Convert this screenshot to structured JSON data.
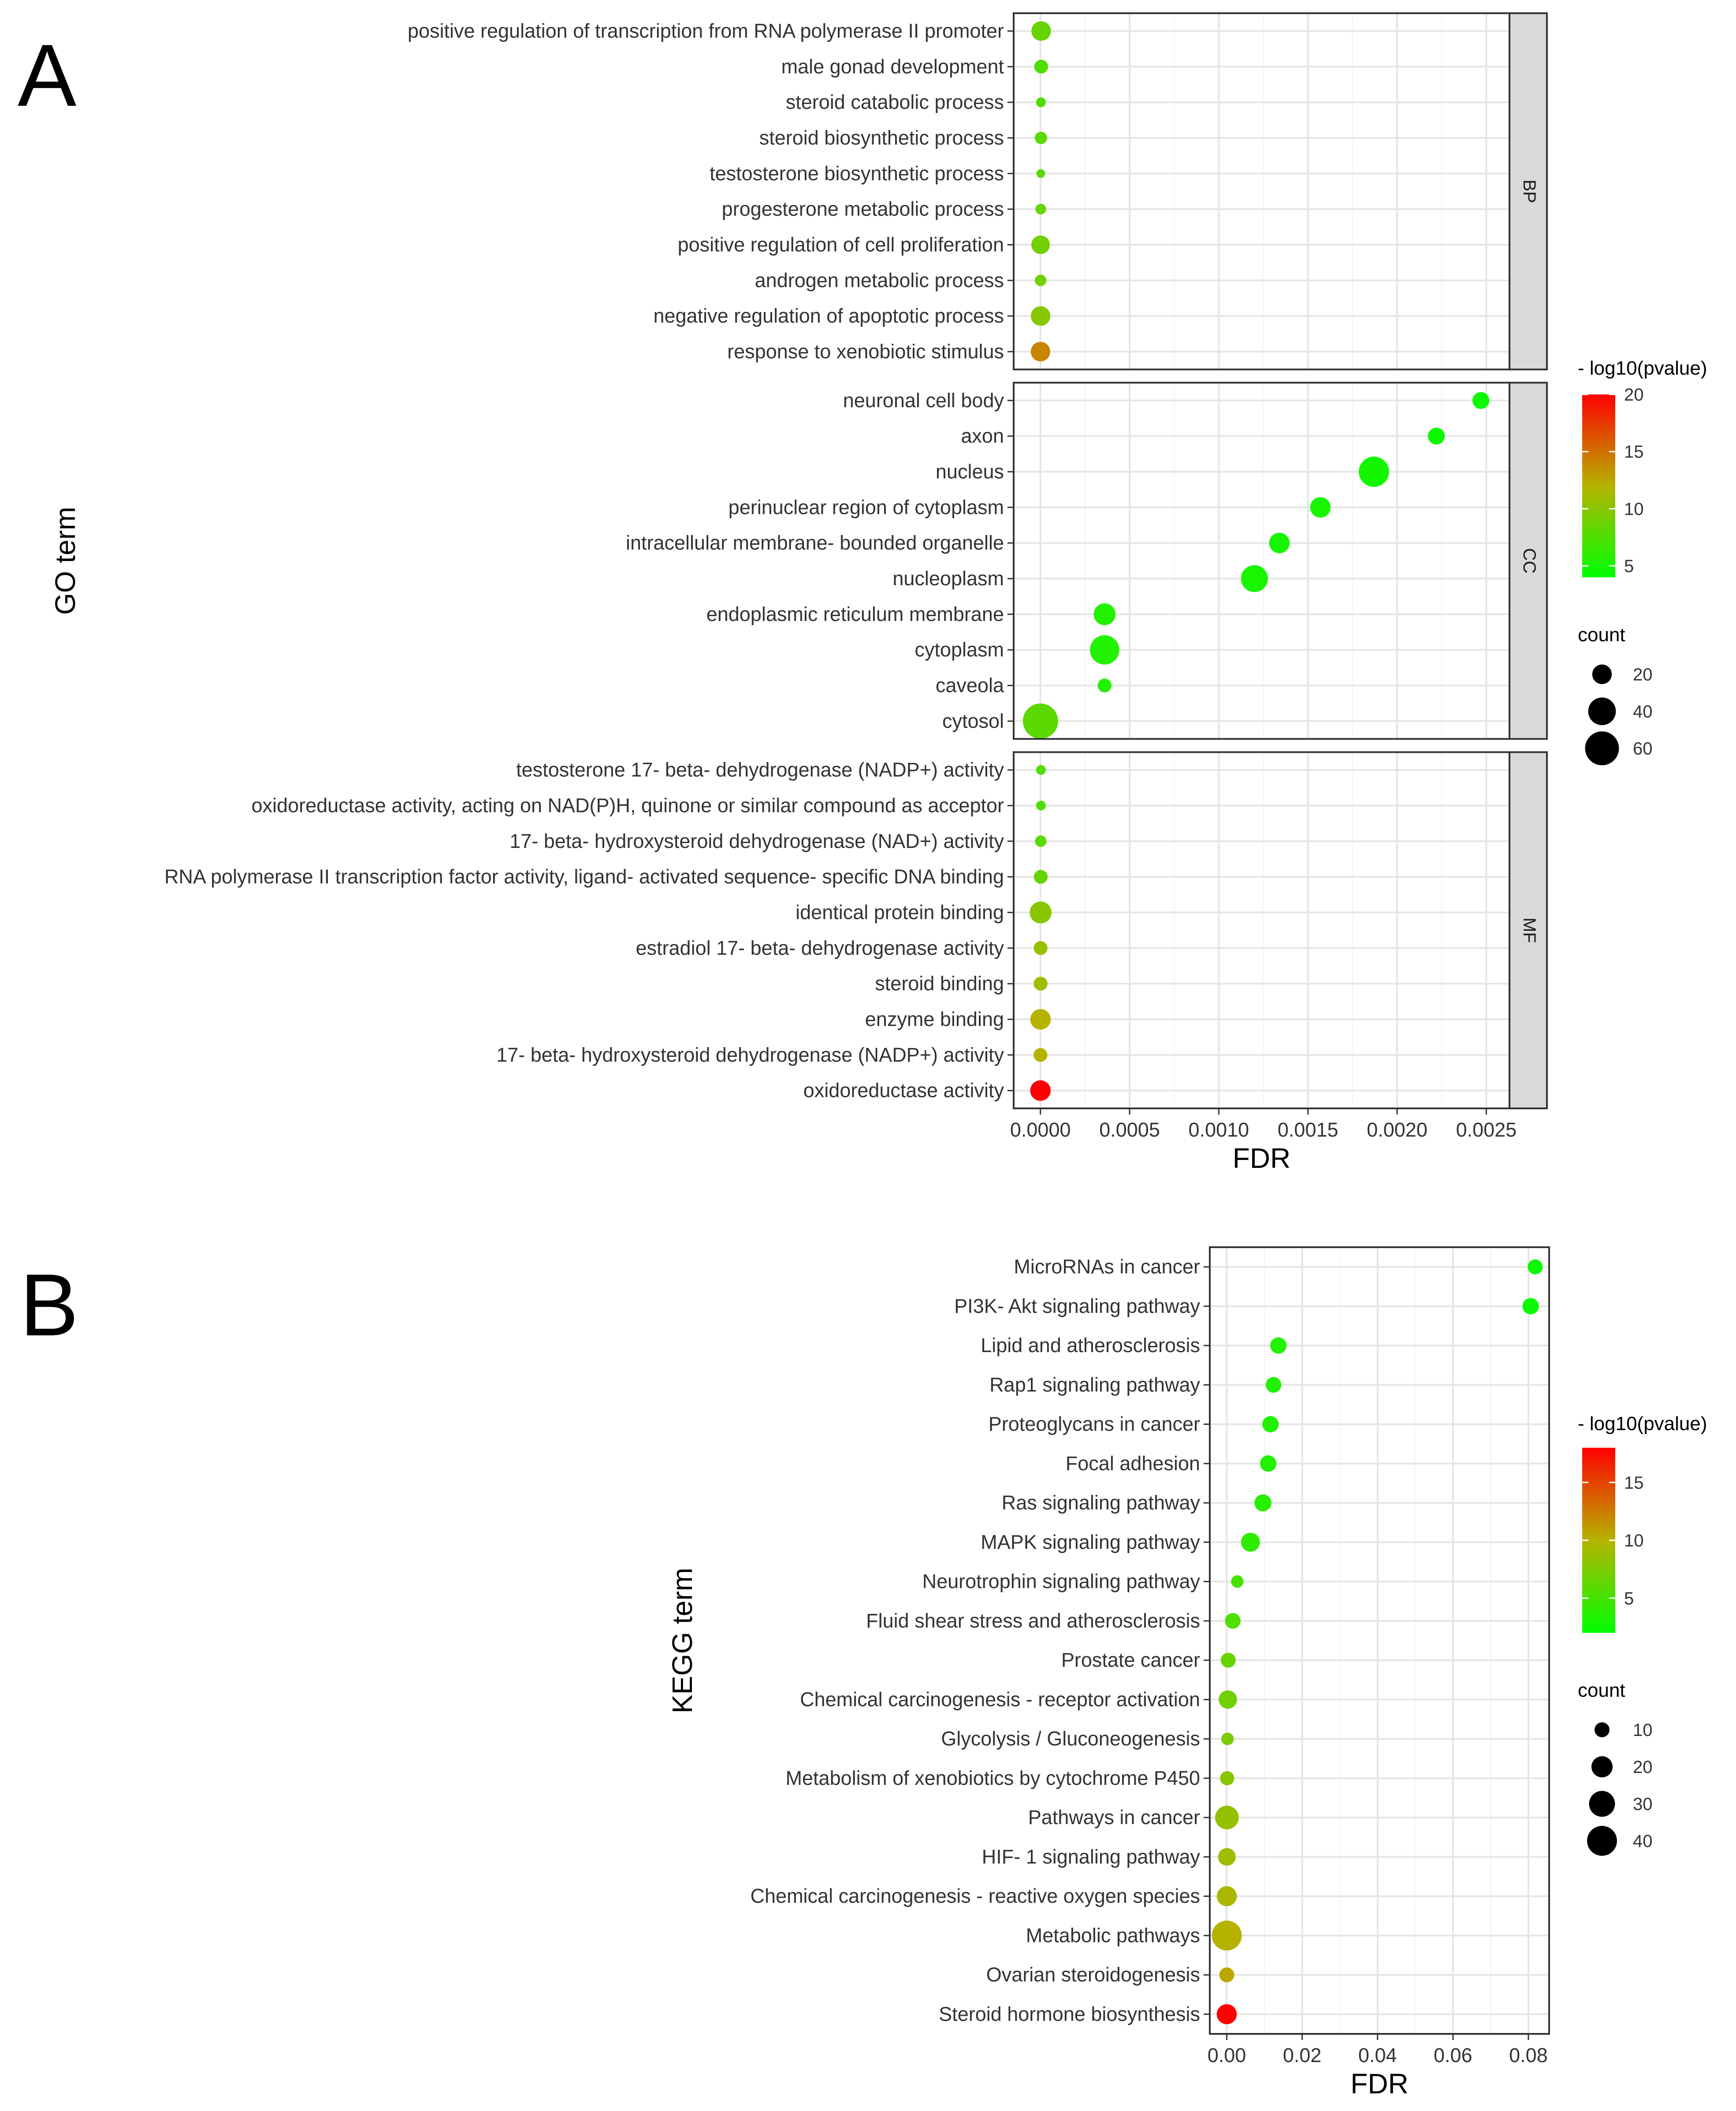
{
  "panels": [
    {
      "letter": "A"
    },
    {
      "letter": "B"
    }
  ],
  "colors": {
    "low": "#00ff00",
    "mid": "#b5b300",
    "high": "#ff0000"
  },
  "chart_data": [
    {
      "type": "scatter",
      "title": "",
      "xlabel": "FDR",
      "ylabel": "GO term",
      "xlim": [
        -0.00015,
        0.00263
      ],
      "xticks": [
        "0.0000",
        "0.0005",
        "0.0010",
        "0.0015",
        "0.0020",
        "0.0025"
      ],
      "xtick_values": [
        0,
        0.0005,
        0.001,
        0.0015,
        0.002,
        0.0025
      ],
      "grid": true,
      "color_legend": {
        "title": "- log10(pvalue)",
        "min": 4,
        "max": 20,
        "ticks": [
          5,
          10,
          15,
          20
        ]
      },
      "size_legend": {
        "title": "count",
        "ticks": [
          20,
          40,
          60
        ],
        "max": 65
      },
      "facets": [
        {
          "label": "BP",
          "terms": [
            {
              "term": "positive regulation of transcription from RNA polymerase II promoter",
              "fdr": 4e-06,
              "count": 20,
              "neglog10p": 8.5
            },
            {
              "term": "male gonad development",
              "fdr": 4e-06,
              "count": 10,
              "neglog10p": 7.5
            },
            {
              "term": "steroid catabolic process",
              "fdr": 3e-06,
              "count": 5,
              "neglog10p": 7.5
            },
            {
              "term": "steroid biosynthetic process",
              "fdr": 3e-06,
              "count": 8,
              "neglog10p": 8
            },
            {
              "term": "testosterone biosynthetic process",
              "fdr": 2e-06,
              "count": 4,
              "neglog10p": 8
            },
            {
              "term": "progesterone metabolic process",
              "fdr": 2e-06,
              "count": 6,
              "neglog10p": 8.5
            },
            {
              "term": "positive regulation of cell proliferation",
              "fdr": 1e-06,
              "count": 18,
              "neglog10p": 9
            },
            {
              "term": "androgen metabolic process",
              "fdr": 1e-06,
              "count": 7,
              "neglog10p": 9
            },
            {
              "term": "negative regulation of apoptotic process",
              "fdr": 1e-06,
              "count": 20,
              "neglog10p": 10
            },
            {
              "term": "response to xenobiotic stimulus",
              "fdr": 5e-07,
              "count": 20,
              "neglog10p": 14
            }
          ]
        },
        {
          "label": "CC",
          "terms": [
            {
              "term": "neuronal cell body",
              "fdr": 0.00247,
              "count": 15,
              "neglog10p": 4.5
            },
            {
              "term": "axon",
              "fdr": 0.00222,
              "count": 15,
              "neglog10p": 4.6
            },
            {
              "term": "nucleus",
              "fdr": 0.00187,
              "count": 48,
              "neglog10p": 4.8
            },
            {
              "term": "perinuclear region of cytoplasm",
              "fdr": 0.00157,
              "count": 22,
              "neglog10p": 5
            },
            {
              "term": "intracellular membrane- bounded organelle",
              "fdr": 0.00134,
              "count": 22,
              "neglog10p": 5
            },
            {
              "term": "nucleoplasm",
              "fdr": 0.0012,
              "count": 38,
              "neglog10p": 5
            },
            {
              "term": "endoplasmic reticulum membrane",
              "fdr": 0.00036,
              "count": 25,
              "neglog10p": 5.5
            },
            {
              "term": "cytoplasm",
              "fdr": 0.00036,
              "count": 45,
              "neglog10p": 5.5
            },
            {
              "term": "caveola",
              "fdr": 0.00036,
              "count": 10,
              "neglog10p": 5.5
            },
            {
              "term": "cytosol",
              "fdr": 5e-07,
              "count": 65,
              "neglog10p": 8
            }
          ]
        },
        {
          "label": "MF",
          "terms": [
            {
              "term": "testosterone 17- beta- dehydrogenase (NADP+) activity",
              "fdr": 3e-06,
              "count": 5,
              "neglog10p": 7.5
            },
            {
              "term": "oxidoreductase activity, acting on NAD(P)H, quinone or similar compound as acceptor",
              "fdr": 3e-06,
              "count": 5,
              "neglog10p": 7.5
            },
            {
              "term": "17- beta- hydroxysteroid dehydrogenase (NAD+) activity",
              "fdr": 2e-06,
              "count": 7,
              "neglog10p": 8
            },
            {
              "term": "RNA polymerase II transcription factor activity, ligand- activated sequence- specific DNA binding",
              "fdr": 2e-06,
              "count": 10,
              "neglog10p": 8.5
            },
            {
              "term": "identical protein binding",
              "fdr": 1e-06,
              "count": 25,
              "neglog10p": 10
            },
            {
              "term": "estradiol 17- beta- dehydrogenase activity",
              "fdr": 1e-06,
              "count": 10,
              "neglog10p": 10.5
            },
            {
              "term": "steroid binding",
              "fdr": 1e-06,
              "count": 10,
              "neglog10p": 11
            },
            {
              "term": "enzyme binding",
              "fdr": 5e-07,
              "count": 22,
              "neglog10p": 12
            },
            {
              "term": "17- beta- hydroxysteroid dehydrogenase (NADP+) activity",
              "fdr": 5e-07,
              "count": 10,
              "neglog10p": 12
            },
            {
              "term": "oxidoreductase activity",
              "fdr": 1e-07,
              "count": 22,
              "neglog10p": 20
            }
          ]
        }
      ]
    },
    {
      "type": "scatter",
      "title": "",
      "xlabel": "FDR",
      "ylabel": "KEGG term",
      "xlim": [
        -0.0045,
        0.0855
      ],
      "xticks": [
        "0.00",
        "0.02",
        "0.04",
        "0.06",
        "0.08"
      ],
      "xtick_values": [
        0,
        0.02,
        0.04,
        0.06,
        0.08
      ],
      "grid": true,
      "color_legend": {
        "title": "- log10(pvalue)",
        "min": 2,
        "max": 18,
        "ticks": [
          5,
          10,
          15
        ]
      },
      "size_legend": {
        "title": "count",
        "ticks": [
          10,
          20,
          30,
          40
        ],
        "max": 45
      },
      "facets": [
        {
          "label": "",
          "terms": [
            {
              "term": "MicroRNAs in cancer",
              "fdr": 0.0818,
              "count": 10,
              "neglog10p": 2.5
            },
            {
              "term": "PI3K- Akt signaling pathway",
              "fdr": 0.0806,
              "count": 12,
              "neglog10p": 2.5
            },
            {
              "term": "Lipid and atherosclerosis",
              "fdr": 0.0137,
              "count": 12,
              "neglog10p": 3.5
            },
            {
              "term": "Rap1 signaling pathway",
              "fdr": 0.0124,
              "count": 11,
              "neglog10p": 3.5
            },
            {
              "term": "Proteoglycans in cancer",
              "fdr": 0.0116,
              "count": 12,
              "neglog10p": 3.5
            },
            {
              "term": "Focal adhesion",
              "fdr": 0.011,
              "count": 12,
              "neglog10p": 3.6
            },
            {
              "term": "Ras signaling pathway",
              "fdr": 0.0096,
              "count": 13,
              "neglog10p": 3.7
            },
            {
              "term": "MAPK signaling pathway",
              "fdr": 0.0063,
              "count": 16,
              "neglog10p": 4
            },
            {
              "term": "Neurotrophin signaling pathway",
              "fdr": 0.0028,
              "count": 7,
              "neglog10p": 5
            },
            {
              "term": "Fluid shear stress and atherosclerosis",
              "fdr": 0.0016,
              "count": 11,
              "neglog10p": 5.5
            },
            {
              "term": "Prostate cancer",
              "fdr": 0.0004,
              "count": 10,
              "neglog10p": 6.5
            },
            {
              "term": "Chemical carcinogenesis -  receptor activation",
              "fdr": 0.0003,
              "count": 15,
              "neglog10p": 7
            },
            {
              "term": "Glycolysis / Gluconeogenesis",
              "fdr": 0.0002,
              "count": 7,
              "neglog10p": 7.5
            },
            {
              "term": "Metabolism of xenobiotics by cytochrome P450",
              "fdr": 0.0001,
              "count": 9,
              "neglog10p": 8
            },
            {
              "term": "Pathways in cancer",
              "fdr": 5e-05,
              "count": 25,
              "neglog10p": 8.5
            },
            {
              "term": "HIF- 1 signaling pathway",
              "fdr": 3e-05,
              "count": 14,
              "neglog10p": 9
            },
            {
              "term": "Chemical carcinogenesis -  reactive oxygen species",
              "fdr": 2e-05,
              "count": 18,
              "neglog10p": 9.5
            },
            {
              "term": "Metabolic pathways",
              "fdr": 1e-05,
              "count": 40,
              "neglog10p": 10
            },
            {
              "term": "Ovarian steroidogenesis",
              "fdr": 1e-05,
              "count": 10,
              "neglog10p": 10.5
            },
            {
              "term": "Steroid hormone biosynthesis",
              "fdr": 1e-06,
              "count": 18,
              "neglog10p": 18
            }
          ]
        }
      ]
    }
  ]
}
